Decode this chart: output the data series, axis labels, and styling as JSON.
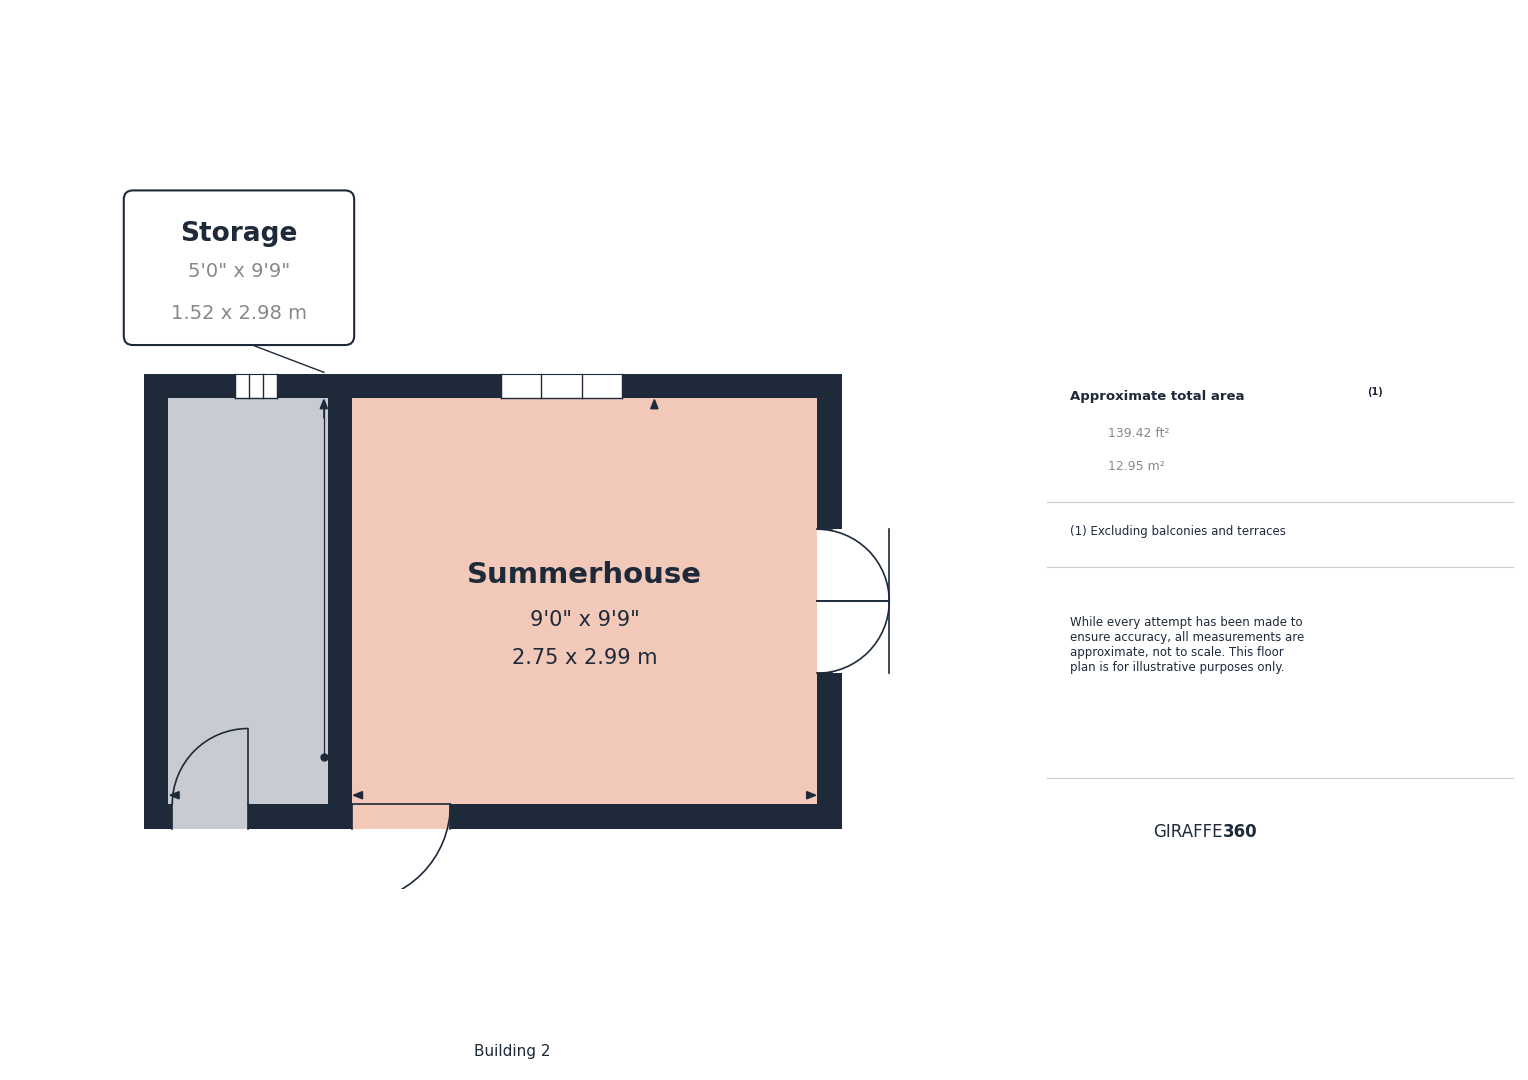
{
  "bg_color": "#ffffff",
  "wall_color": "#1e2a3a",
  "storage_fill": "#c8ccd2",
  "summerhouse_fill": "#f2c9b8",
  "storage_label": "Storage",
  "storage_dim1": "5'0\" x 9'9\"",
  "storage_dim2": "1.52 x 2.98 m",
  "summerhouse_label": "Summerhouse",
  "summerhouse_dim1": "9'0\" x 9'9\"",
  "summerhouse_dim2": "2.75 x 2.99 m",
  "approx_label": "Approximate total area",
  "approx_sup": "(1)",
  "approx_ft2": "139.42 ft²",
  "approx_m2": "12.95 m²",
  "footnote1": "(1) Excluding balconies and terraces",
  "footnote2": "While every attempt has been made to\nensure accuracy, all measurements are\napproximate, not to scale. This floor\nplan is for illustrative purposes only.",
  "brand_normal": "GIRAFFE",
  "brand_bold": "360",
  "building_label": "Building 2",
  "dark_color": "#1e2a3a",
  "gray_text": "#888888",
  "win_color": "#ffffff",
  "win_line": "#1e2a3a"
}
